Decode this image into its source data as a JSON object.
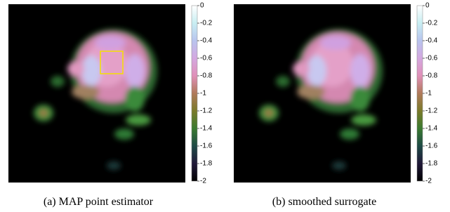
{
  "panels": [
    {
      "caption": "(a) MAP point estimator"
    },
    {
      "caption": "(b) smoothed surrogate"
    }
  ],
  "colorbar": {
    "lim": [
      -2,
      0
    ],
    "ticks": [
      0,
      -0.2,
      -0.4,
      -0.6,
      -0.8,
      -1,
      -1.2,
      -1.4,
      -1.6,
      -1.8,
      -2
    ]
  }
}
